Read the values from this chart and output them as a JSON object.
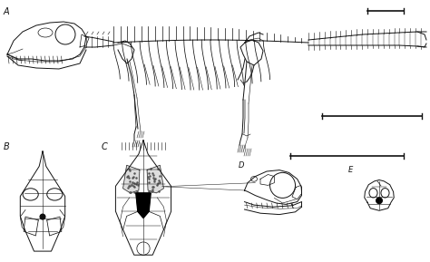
{
  "bg_color": "#ffffff",
  "label_A": "A",
  "label_B": "B",
  "label_C": "C",
  "label_D": "D",
  "label_E": "E",
  "label_fontsize": 7,
  "label_color": "#111111",
  "line_color": "#111111",
  "fig_width": 4.74,
  "fig_height": 2.89,
  "dpi": 100
}
